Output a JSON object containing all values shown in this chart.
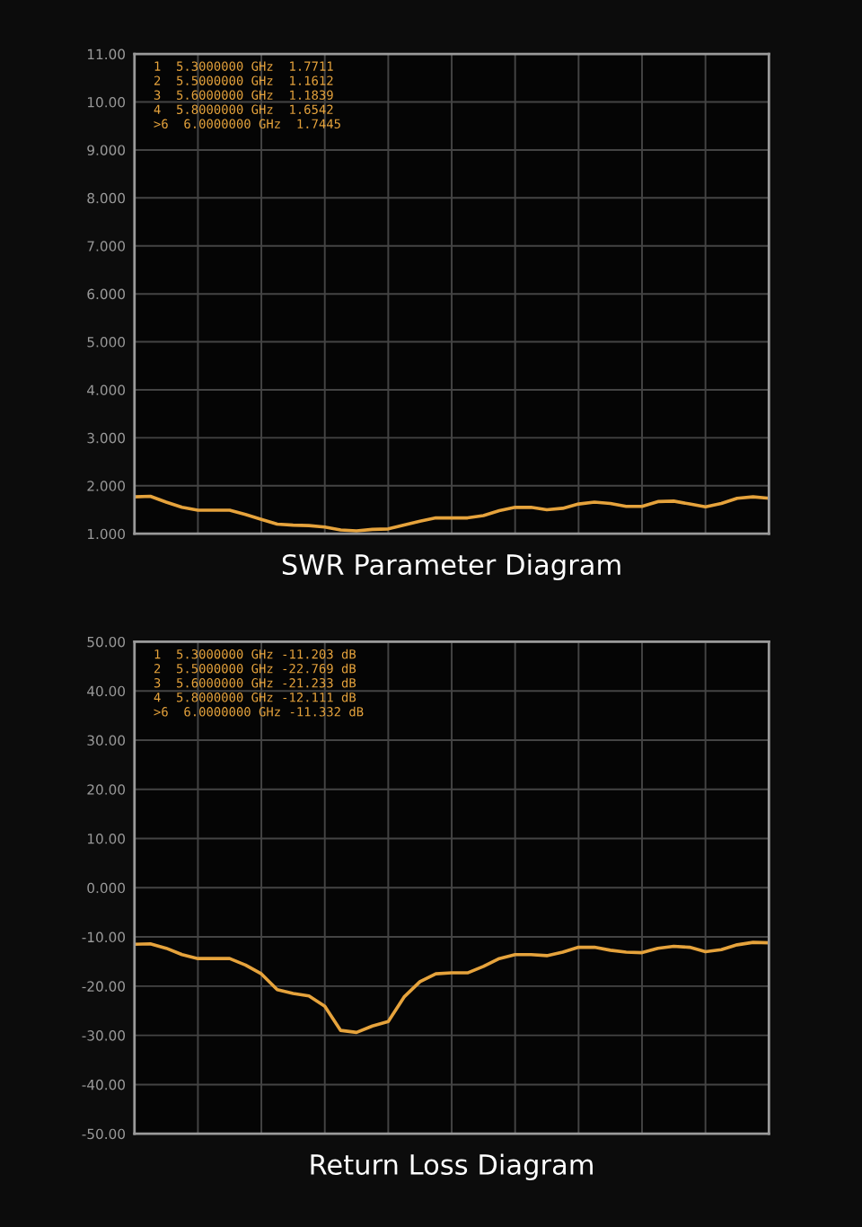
{
  "chart_data": [
    {
      "type": "line",
      "xlabel": "SWR Parameter Diagram",
      "categories": [
        null,
        null,
        null,
        null,
        null,
        null,
        null,
        null,
        null,
        null,
        null,
        null,
        null,
        null,
        null,
        null,
        null,
        null,
        null,
        null,
        null,
        null,
        null,
        null,
        null,
        null,
        null,
        null,
        null,
        null,
        null,
        null,
        null,
        null,
        null,
        null,
        null,
        null,
        null,
        null,
        null
      ],
      "series": [
        {
          "color": "#e6a33c",
          "values": [
            1.77,
            1.78,
            1.66,
            1.55,
            1.49,
            1.49,
            1.49,
            1.4,
            1.3,
            1.2,
            1.18,
            1.17,
            1.14,
            1.08,
            1.06,
            1.09,
            1.1,
            1.18,
            1.26,
            1.33,
            1.33,
            1.33,
            1.38,
            1.48,
            1.55,
            1.55,
            1.5,
            1.53,
            1.62,
            1.66,
            1.63,
            1.57,
            1.57,
            1.67,
            1.68,
            1.62,
            1.56,
            1.63,
            1.74,
            1.77,
            1.74
          ]
        }
      ],
      "ylim": [
        1,
        11
      ],
      "yticks": [
        {
          "value": 1,
          "label": "1.000"
        },
        {
          "value": 2,
          "label": "2.000"
        },
        {
          "value": 3,
          "label": "3.000"
        },
        {
          "value": 4,
          "label": "4.000"
        },
        {
          "value": 5,
          "label": "5.000"
        },
        {
          "value": 6,
          "label": "6.000"
        },
        {
          "value": 7,
          "label": "7.000"
        },
        {
          "value": 8,
          "label": "8.000"
        },
        {
          "value": 9,
          "label": "9.000"
        },
        {
          "value": 10,
          "label": "10.00"
        },
        {
          "value": 11,
          "label": "11.00"
        }
      ],
      "grid": true,
      "legend": false,
      "tick_labels": "y",
      "marker": "none",
      "line_style": "solid",
      "annotations": [
        "1  5.3000000 GHz  1.7711",
        "2  5.5000000 GHz  1.1612",
        "3  5.6000000 GHz  1.1839",
        "4  5.8000000 GHz  1.6542",
        ">6  6.0000000 GHz  1.7445"
      ]
    },
    {
      "type": "line",
      "xlabel": "Return Loss Diagram",
      "categories": [
        null,
        null,
        null,
        null,
        null,
        null,
        null,
        null,
        null,
        null,
        null,
        null,
        null,
        null,
        null,
        null,
        null,
        null,
        null,
        null,
        null,
        null,
        null,
        null,
        null,
        null,
        null,
        null,
        null,
        null,
        null,
        null,
        null,
        null,
        null,
        null,
        null,
        null,
        null,
        null,
        null
      ],
      "series": [
        {
          "color": "#e6a33c",
          "values": [
            -11.5,
            -11.4,
            -12.3,
            -13.6,
            -14.4,
            -14.4,
            -14.4,
            -15.7,
            -17.5,
            -20.7,
            -21.5,
            -22.0,
            -24.1,
            -29.0,
            -29.4,
            -28.1,
            -27.2,
            -22.2,
            -19.1,
            -17.5,
            -17.3,
            -17.3,
            -16.0,
            -14.4,
            -13.6,
            -13.6,
            -13.8,
            -13.1,
            -12.1,
            -12.1,
            -12.7,
            -13.1,
            -13.2,
            -12.3,
            -11.9,
            -12.1,
            -13.0,
            -12.6,
            -11.6,
            -11.1,
            -11.2
          ]
        }
      ],
      "ylim": [
        -50,
        50
      ],
      "yticks": [
        {
          "value": -50,
          "label": "-50.00"
        },
        {
          "value": -40,
          "label": "-40.00"
        },
        {
          "value": -30,
          "label": "-30.00"
        },
        {
          "value": -20,
          "label": "-20.00"
        },
        {
          "value": -10,
          "label": "-10.00"
        },
        {
          "value": 0,
          "label": "0.000"
        },
        {
          "value": 10,
          "label": "10.00"
        },
        {
          "value": 20,
          "label": "20.00"
        },
        {
          "value": 30,
          "label": "30.00"
        },
        {
          "value": 40,
          "label": "40.00"
        },
        {
          "value": 50,
          "label": "50.00"
        }
      ],
      "grid": true,
      "legend": false,
      "tick_labels": "y",
      "marker": "none",
      "line_style": "solid",
      "annotations": [
        "1  5.3000000 GHz -11.203 dB",
        "2  5.5000000 GHz -22.769 dB",
        "3  5.6000000 GHz -21.233 dB",
        "4  5.8000000 GHz -12.111 dB",
        ">6  6.0000000 GHz -11.332 dB"
      ]
    }
  ]
}
